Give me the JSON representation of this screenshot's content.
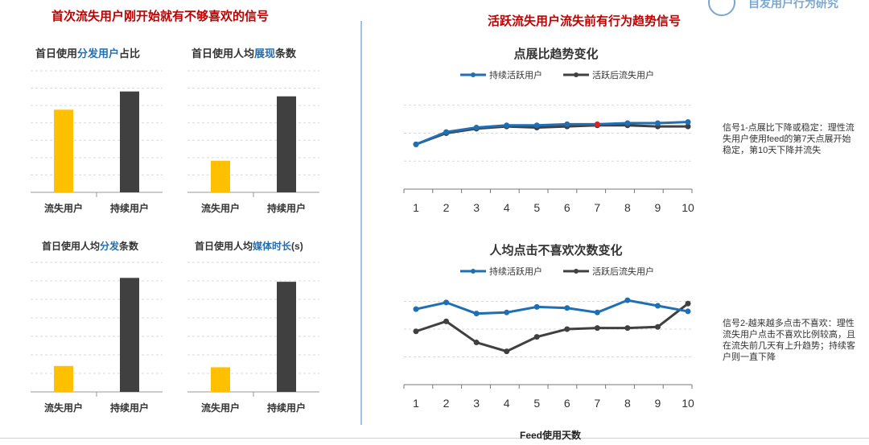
{
  "header": {
    "left_title": "首次流失用户刚开始就有不够喜欢的信号",
    "right_title": "活跃流失用户流失前有行为趋势信号",
    "logo_text": "自发用户行为研究"
  },
  "notes": {
    "signal1": "信号1-点展比下降或稳定：理性流失用户使用feed的第7天点展开始稳定，第10天下降并流失",
    "signal2": "信号2-越来越多点击不喜欢：理性流失用户点击不喜欢比例较高，且在流失前几天有上升趋势；持续客户则一直下降"
  },
  "colors": {
    "yellow": "#ffc000",
    "dark": "#404040",
    "blue": "#1f6fb5",
    "highlight": "#e02020"
  },
  "chart_data": [
    {
      "type": "bar",
      "title_parts": [
        "首日使用",
        "分发用户",
        "占比"
      ],
      "categories": [
        "流失用户",
        "持续用户"
      ],
      "values": [
        0.68,
        0.83
      ],
      "ylim": [
        0,
        1
      ],
      "grid": true
    },
    {
      "type": "bar",
      "title_parts": [
        "首日使用人均",
        "展现",
        "条数"
      ],
      "categories": [
        "流失用户",
        "持续用户"
      ],
      "values": [
        0.26,
        0.79
      ],
      "ylim": [
        0,
        1
      ],
      "grid": true
    },
    {
      "type": "bar",
      "title_parts": [
        "首日使用人均",
        "分发",
        "条数"
      ],
      "categories": [
        "流失用户",
        "持续用户"
      ],
      "values": [
        0.2,
        0.88
      ],
      "ylim": [
        0,
        1
      ],
      "grid": true
    },
    {
      "type": "bar",
      "title_parts": [
        "首日使用人均",
        "媒体时长",
        "(s)"
      ],
      "categories": [
        "流失用户",
        "持续用户"
      ],
      "values": [
        0.19,
        0.85
      ],
      "ylim": [
        0,
        1
      ],
      "grid": true
    },
    {
      "type": "line",
      "title": "点展比趋势变化",
      "x": [
        1,
        2,
        3,
        4,
        5,
        6,
        7,
        8,
        9,
        10
      ],
      "series": [
        {
          "name": "持续活跃用户",
          "values": [
            40,
            51,
            55,
            57,
            57,
            58,
            58,
            59,
            59,
            60
          ]
        },
        {
          "name": "活跃后流失用户",
          "values": [
            40,
            50,
            54,
            56,
            55,
            56,
            57,
            57,
            56,
            56
          ]
        }
      ],
      "highlight": {
        "series": 0,
        "x": 7
      },
      "ylim": [
        0,
        100
      ],
      "grid": true,
      "legend": "top"
    },
    {
      "type": "line",
      "title": "人均点击不喜欢次数变化",
      "x": [
        1,
        2,
        3,
        4,
        5,
        6,
        7,
        8,
        9,
        10
      ],
      "series": [
        {
          "name": "持续活跃用户",
          "values": [
            68,
            74,
            64,
            65,
            70,
            69,
            65,
            76,
            71,
            66
          ]
        },
        {
          "name": "活跃后流失用户",
          "values": [
            48,
            57,
            38,
            30,
            43,
            50,
            51,
            51,
            52,
            73
          ]
        }
      ],
      "ylim": [
        0,
        100
      ],
      "grid": true,
      "legend": "top"
    }
  ],
  "xaxis_title": "Feed使用天数"
}
